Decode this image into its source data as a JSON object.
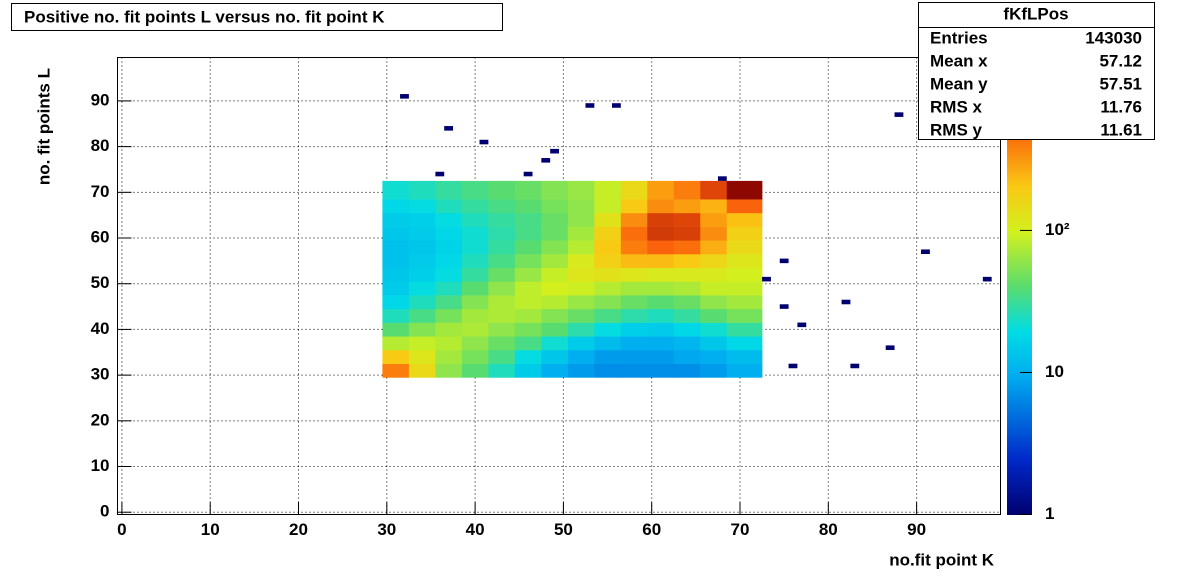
{
  "chart_data": {
    "type": "heatmap",
    "title": "Positive no. fit points L versus no. fit point K",
    "x_label": "no.fit point K",
    "y_label": "no. fit points  L",
    "xlim": [
      -0.5,
      99.5
    ],
    "ylim": [
      -0.5,
      99.5
    ],
    "xticks": [
      0,
      10,
      20,
      30,
      40,
      50,
      60,
      70,
      80,
      90
    ],
    "yticks": [
      0,
      10,
      20,
      30,
      40,
      50,
      60,
      70,
      80,
      90
    ],
    "grid": true,
    "zlim": [
      1,
      1650
    ],
    "zlog": true,
    "zticks": [
      1,
      10,
      {
        "value": 100,
        "label": "10²"
      }
    ],
    "xbins": [
      29.5,
      32.5,
      35.5,
      38.5,
      41.5,
      44.5,
      47.5,
      50.5,
      53.5,
      56.5,
      59.5,
      62.5,
      65.5,
      68.5,
      72.5
    ],
    "ybins": [
      29.5,
      32.5,
      35.5,
      38.5,
      41.5,
      44.5,
      47.5,
      50.5,
      53.5,
      56.5,
      59.5,
      62.5,
      65.5,
      68.5,
      72.5
    ],
    "z": [
      [
        400,
        150,
        60,
        40,
        25,
        15,
        10,
        8,
        7,
        7,
        7,
        7,
        8,
        10
      ],
      [
        200,
        120,
        70,
        50,
        35,
        20,
        14,
        10,
        8,
        8,
        8,
        9,
        10,
        12
      ],
      [
        80,
        90,
        80,
        60,
        45,
        35,
        22,
        15,
        12,
        10,
        10,
        11,
        14,
        18
      ],
      [
        40,
        55,
        70,
        75,
        60,
        50,
        40,
        28,
        20,
        16,
        15,
        18,
        22,
        30
      ],
      [
        25,
        35,
        50,
        70,
        75,
        70,
        55,
        45,
        35,
        28,
        25,
        30,
        40,
        50
      ],
      [
        18,
        25,
        35,
        55,
        75,
        85,
        80,
        65,
        55,
        45,
        40,
        45,
        60,
        70
      ],
      [
        15,
        20,
        25,
        40,
        60,
        85,
        100,
        95,
        80,
        70,
        70,
        75,
        90,
        90
      ],
      [
        14,
        16,
        20,
        30,
        45,
        65,
        90,
        120,
        130,
        120,
        110,
        110,
        110,
        100
      ],
      [
        13,
        15,
        18,
        25,
        35,
        50,
        70,
        110,
        180,
        230,
        230,
        200,
        160,
        120
      ],
      [
        13,
        14,
        17,
        22,
        30,
        40,
        55,
        80,
        200,
        400,
        500,
        450,
        260,
        150
      ],
      [
        14,
        15,
        18,
        22,
        28,
        35,
        45,
        70,
        180,
        450,
        800,
        750,
        350,
        180
      ],
      [
        15,
        16,
        20,
        25,
        30,
        35,
        45,
        60,
        130,
        350,
        750,
        700,
        300,
        220
      ],
      [
        18,
        20,
        25,
        30,
        35,
        40,
        50,
        60,
        90,
        200,
        350,
        300,
        250,
        500
      ],
      [
        22,
        25,
        30,
        35,
        40,
        45,
        55,
        65,
        90,
        150,
        300,
        400,
        700,
        1500
      ]
    ],
    "outliers": {
      "x": [
        32,
        37,
        41,
        36,
        46,
        48,
        49,
        53,
        56,
        68,
        88,
        91,
        98,
        73,
        75,
        75,
        77,
        82,
        87,
        76,
        83
      ],
      "y": [
        91,
        84,
        81,
        74,
        74,
        77,
        79,
        89,
        89,
        73,
        87,
        57,
        51,
        51,
        55,
        45,
        41,
        46,
        36,
        32,
        32
      ],
      "values": [
        1,
        1,
        1,
        1,
        1,
        1,
        1,
        1,
        1,
        1,
        1,
        1,
        1,
        1,
        1,
        1,
        1,
        1,
        1,
        1,
        1
      ]
    },
    "stats": {
      "name": "fKfLPos",
      "labels": [
        "Entries",
        "Mean x",
        "Mean y",
        "RMS x",
        "RMS y"
      ],
      "values": [
        143030,
        57.12,
        57.51,
        11.76,
        11.61
      ]
    }
  }
}
